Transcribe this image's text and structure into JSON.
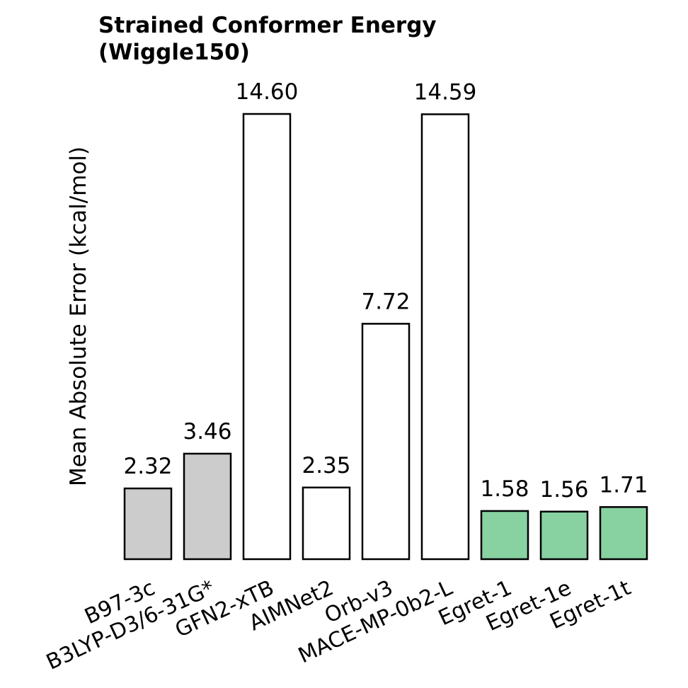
{
  "chart_data": {
    "type": "bar",
    "title_line1": "Strained Conformer Energy",
    "title_line2": "(Wiggle150)",
    "ylabel": "Mean Absolute Error (kcal/mol)",
    "xlabel": "",
    "ylim": [
      0,
      14.6
    ],
    "grid": false,
    "categories": [
      "B97-3c",
      "B3LYP-D3/6-31G*",
      "GFN2-xTB",
      "AIMNet2",
      "Orb-v3",
      "MACE-MP-0b2-L",
      "Egret-1",
      "Egret-1e",
      "Egret-1t"
    ],
    "values": [
      2.32,
      3.46,
      14.6,
      2.35,
      7.72,
      14.59,
      1.58,
      1.56,
      1.71
    ],
    "value_labels": [
      "2.32",
      "3.46",
      "14.60",
      "2.35",
      "7.72",
      "14.59",
      "1.58",
      "1.56",
      "1.71"
    ],
    "colors": [
      "#cccccc",
      "#cccccc",
      "#ffffff",
      "#ffffff",
      "#ffffff",
      "#ffffff",
      "#88d1a1",
      "#88d1a1",
      "#88d1a1"
    ],
    "edge_color": "#000000"
  }
}
